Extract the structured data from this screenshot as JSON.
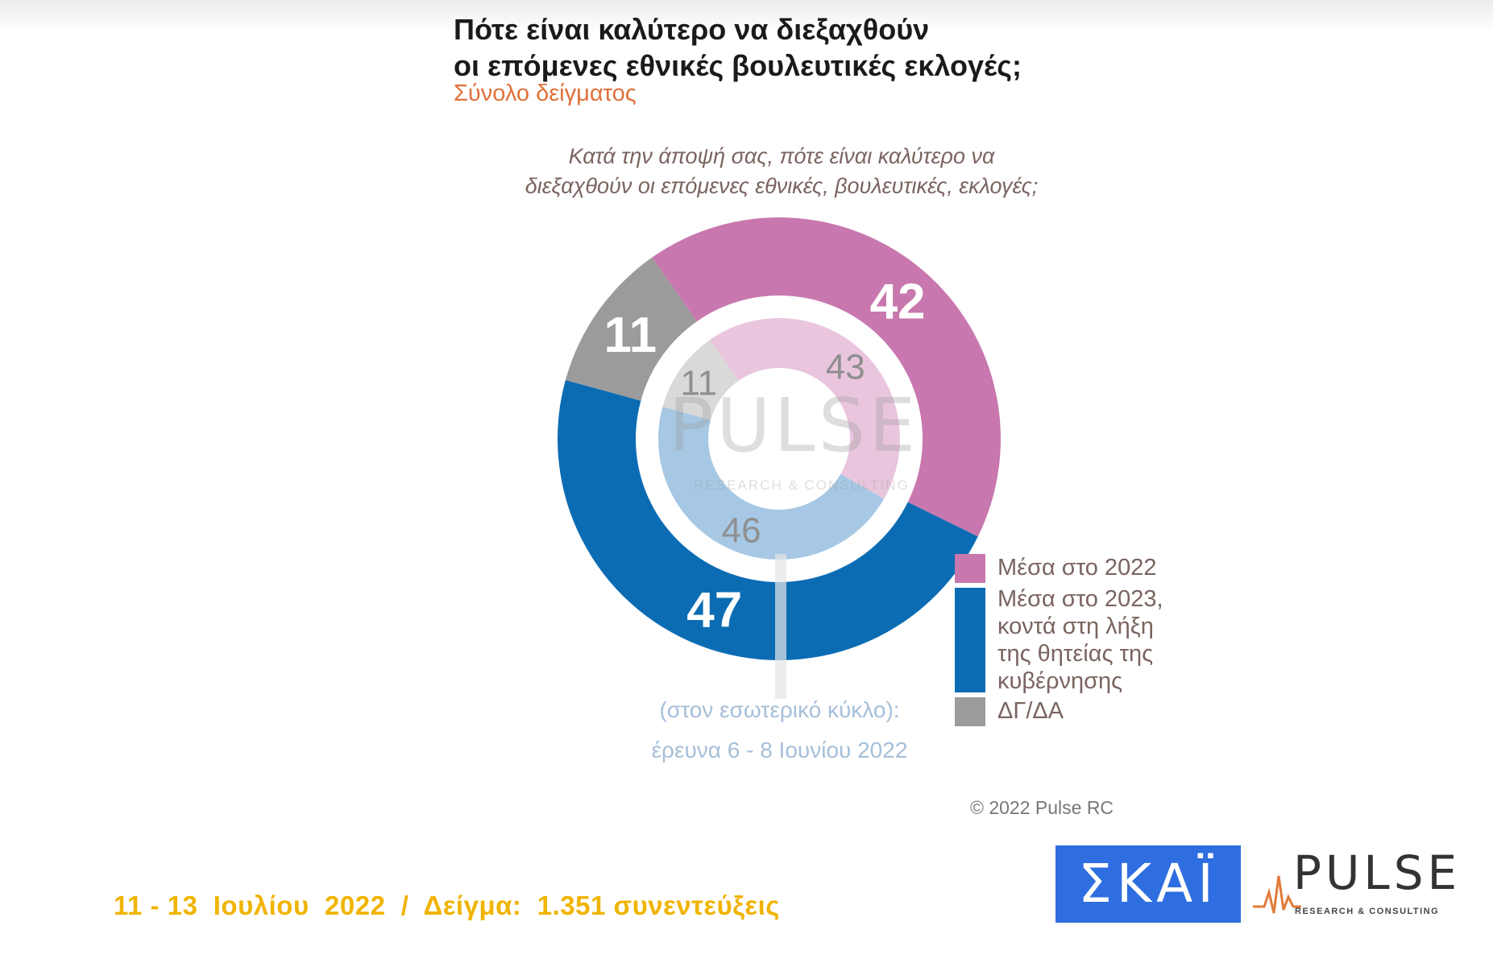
{
  "header": {
    "title_line1": "Πότε είναι καλύτερο να διεξαχθούν",
    "title_line2": "οι επόμενες εθνικές βουλευτικές εκλογές;",
    "subtitle": "Σύνολο δείγματος"
  },
  "question": {
    "line1": "Κατά την άποψή σας, πότε είναι καλύτερο να",
    "line2": "διεξαχθούν οι επόμενες εθνικές, βουλευτικές, εκλογές;"
  },
  "chart_data": {
    "type": "pie",
    "subtype": "double-donut",
    "categories": [
      "Μέσα στο 2022",
      "Μέσα στο 2023, κοντά στη λήξη της θητείας της κυβέρνησης",
      "ΔΓ/ΔΑ"
    ],
    "series": [
      {
        "ring": "outer",
        "values": [
          42,
          47,
          11
        ]
      },
      {
        "ring": "inner",
        "values": [
          43,
          46,
          11
        ]
      }
    ],
    "colors_outer": [
      "#c878ae",
      "#0b6cb4",
      "#9b9b9b"
    ],
    "colors_inner": [
      "#e9c6dd",
      "#a6c8e4",
      "#d9d9d9"
    ],
    "legend_position": "bottom-right",
    "inner_ring_note": [
      "(στον εσωτερικό κύκλο):",
      "έρευνα 6 - 8 Ιουνίου 2022"
    ]
  },
  "legend": {
    "item1": [
      "Μέσα στο 2022"
    ],
    "item2": [
      "Μέσα στο 2023,",
      "κοντά στη λήξη",
      "της θητείας της",
      "κυβέρνησης"
    ],
    "item3": [
      "ΔΓ/ΔΑ"
    ]
  },
  "copyright": "© 2022 Pulse RC",
  "footer": "11 - 13  Ιουλίου  2022  /  Δείγμα:  1.351 συνεντεύξεις",
  "logos": {
    "skai": "ΣΚΑΪ",
    "pulse": "PULSE",
    "pulse_sub": "RESEARCH & CONSULTING"
  }
}
